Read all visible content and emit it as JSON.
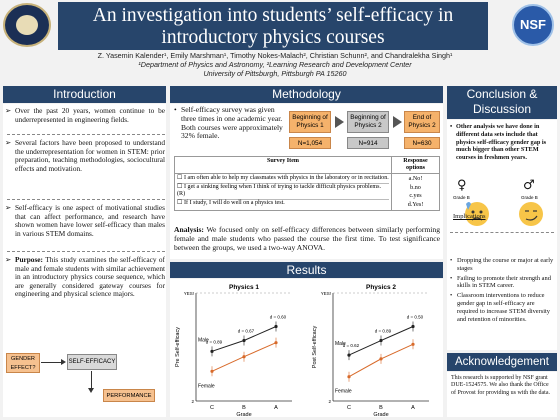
{
  "title": "An investigation into students’ self-efficacy in introductory physics courses",
  "authors_line": "Z. Yasemin Kalender¹, Emily Marshman¹, Timothy Nokes-Malach², Christian Schunn², and Chandralekha Singh¹",
  "affiliation_1": "¹Department of Physics and Astronomy, ²Learning Research and Development Center",
  "affiliation_2": "University of Pittsburgh, Pittsburgh PA 15260",
  "logos": {
    "left_icon": "pitt-seal-icon",
    "right_text": "NSF"
  },
  "introduction": {
    "heading": "Introduction",
    "items": [
      "Over the past 20 years, women continue to be underrepresented in engineering fields.",
      "Several factors have been proposed to understand the underrepresentation for women in STEM: prior preparation, teaching methodologies, sociocultural effects and motivation.",
      "Self-efficacy is one aspect of motivational studies that can affect performance, and research have shown women have lower self-efficacy than males in various STEM domains.",
      "This study examines the self-efficacy of male and female students with similar achievement in an introductory physics course sequence, which are generally considered gateway courses for engineering and physical science majors."
    ],
    "purpose_label": "Purpose:",
    "diagram": {
      "gender": "GENDER EFFECT?",
      "self_efficacy": "SELF-EFFICACY",
      "performance": "PERFORMANCE"
    }
  },
  "methodology": {
    "heading": "Methodology",
    "survey_text": "Self-efficacy survey was given three times in one academic year. Both courses were approximately 32% female.",
    "steps": [
      {
        "label": "Beginning of Physics 1",
        "n": "N=1,054"
      },
      {
        "label": "Beginning of Physics 2",
        "n": "N=914"
      },
      {
        "label": "End of Physics 2",
        "n": "N=630"
      }
    ],
    "table": {
      "col1": "Survey Item",
      "col2": "Response options",
      "items": [
        "I am often able to help my classmates with physics in the laboratory or in recitation.",
        "I get a sinking feeling when I think of trying to tackle difficult physics problems. (R)",
        "If I study, I will do well on a physics test."
      ],
      "options": [
        "a.No!",
        "b.no",
        "c.yes",
        "d.Yes!"
      ]
    },
    "analysis_label": "Analysis:",
    "analysis_text": "We focused only on self-efficacy differences between similarly performing female and male students who passed the course the first time. To test significance between the groups, we used a two-way ANOVA."
  },
  "results": {
    "heading": "Results",
    "chart_data": [
      {
        "type": "line",
        "title": "Physics 1",
        "xlabel": "Grade",
        "ylabel": "Pre Self-efficacy",
        "categories": [
          "C",
          "B",
          "A"
        ],
        "ylim": [
          2,
          4
        ],
        "yticks": [
          "2",
          "YES!"
        ],
        "series": [
          {
            "name": "Male",
            "values": [
              2.92,
              3.12,
              3.38
            ]
          },
          {
            "name": "Female",
            "values": [
              2.55,
              2.82,
              3.08
            ]
          }
        ],
        "annotations": [
          "d = 0.89",
          "d = 0.67",
          "d = 0.60"
        ]
      },
      {
        "type": "line",
        "title": "Physics 2",
        "xlabel": "Grade",
        "ylabel": "Post Self-efficacy",
        "categories": [
          "C",
          "B",
          "A"
        ],
        "ylim": [
          2,
          4
        ],
        "yticks": [
          "2",
          "YES!"
        ],
        "series": [
          {
            "name": "Male",
            "values": [
              2.85,
              3.12,
              3.38
            ]
          },
          {
            "name": "Female",
            "values": [
              2.45,
              2.78,
              3.05
            ]
          }
        ],
        "annotations": [
          "d = 0.62",
          "d = 0.89",
          "d = 0.50"
        ]
      }
    ]
  },
  "conclusion": {
    "heading": "Conclusion & Discussion",
    "bullet": "Other analysis we have done in different data sets include that physics self-efficacy gender gap is much bigger than other STEM courses in freshmen years.",
    "grade_label": "Grade B",
    "implications_label": "Implications",
    "implications": [
      "Dropping the course or major at early stages",
      "Failing to promote their strength and skills in STEM career.",
      "Classroom interventions to reduce gender gap in self-efficacy are required to increase STEM diversity and retention of minorities."
    ]
  },
  "acknowledgement": {
    "heading": "Acknowledgement",
    "text": "This research is supported by NSF grant DUE-1524575. We also thank the Office of Provost for providing us with the data."
  },
  "colors": {
    "banner": "#27456b",
    "orange": "#f5b26b",
    "grey_box": "#c8c8c8",
    "male_line": "#222222",
    "female_line": "#d86a2a"
  }
}
